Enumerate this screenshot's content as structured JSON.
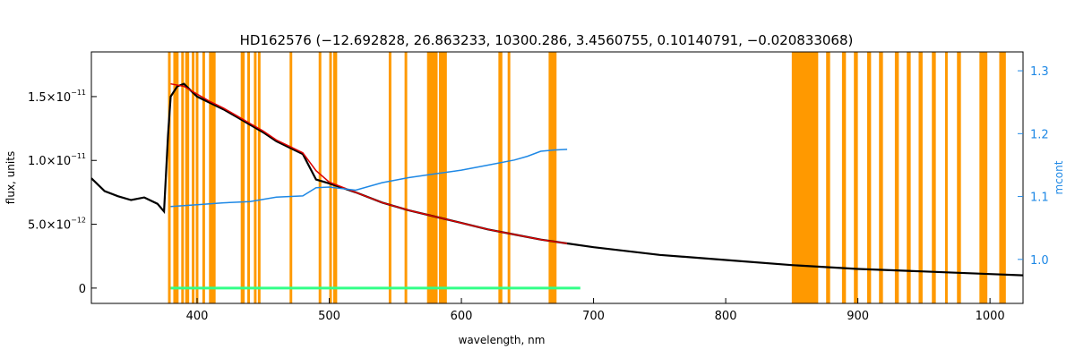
{
  "chart_data": {
    "type": "line",
    "title": "HD162576    (−12.692828, 26.863233, 10300.286, 3.4560755, 0.10140791, −0.020833068)",
    "xlabel": "wavelength, nm",
    "ylabel": "flux, units",
    "ylabel_right": "mcont",
    "xlim": [
      320,
      1025
    ],
    "ylim": [
      -1.2e-12,
      1.85e-11
    ],
    "ylim_right": [
      0.93,
      1.33
    ],
    "x_ticks": [
      400,
      500,
      600,
      700,
      800,
      900,
      1000
    ],
    "y_ticks": [
      {
        "value": 0,
        "mantissa": "0",
        "exponent": ""
      },
      {
        "value": 5e-12,
        "mantissa": "5.0×10",
        "exponent": "−12"
      },
      {
        "value": 1e-11,
        "mantissa": "1.0×10",
        "exponent": "−11"
      },
      {
        "value": 1.5e-11,
        "mantissa": "1.5×10",
        "exponent": "−11"
      }
    ],
    "y_right_ticks": [
      1.0,
      1.1,
      1.2,
      1.3
    ],
    "grid": false,
    "colors": {
      "observed": "#000000",
      "model": "#dd0000",
      "residual": "#33ff88",
      "continuum": "#1e88e5",
      "mask": "#ff9900"
    },
    "masked_regions": [
      [
        378,
        380
      ],
      [
        382,
        386
      ],
      [
        388,
        390
      ],
      [
        391,
        394
      ],
      [
        396,
        398
      ],
      [
        399,
        401
      ],
      [
        404,
        406
      ],
      [
        409,
        414
      ],
      [
        433,
        436
      ],
      [
        438,
        440
      ],
      [
        443,
        445
      ],
      [
        446,
        448
      ],
      [
        470,
        472
      ],
      [
        492,
        494
      ],
      [
        500,
        502
      ],
      [
        503,
        506
      ],
      [
        545,
        547
      ],
      [
        557,
        559
      ],
      [
        574,
        582
      ],
      [
        583,
        589
      ],
      [
        628,
        631
      ],
      [
        635,
        637
      ],
      [
        666,
        672
      ],
      [
        850,
        870
      ],
      [
        876,
        879
      ],
      [
        888,
        891
      ],
      [
        897,
        900
      ],
      [
        907,
        910
      ],
      [
        916,
        919
      ],
      [
        928,
        931
      ],
      [
        937,
        940
      ],
      [
        946,
        949
      ],
      [
        956,
        959
      ],
      [
        966,
        968
      ],
      [
        975,
        978
      ],
      [
        992,
        998
      ],
      [
        1007,
        1012
      ]
    ],
    "series": [
      {
        "name": "",
        "role": "observed",
        "x": [
          320,
          330,
          340,
          350,
          360,
          370,
          375,
          378,
          380,
          385,
          390,
          395,
          400,
          410,
          420,
          430,
          440,
          450,
          460,
          470,
          480,
          490,
          500,
          520,
          540,
          560,
          580,
          600,
          620,
          640,
          660,
          680,
          700,
          750,
          800,
          850,
          900,
          950,
          1000,
          1025
        ],
        "y": [
          8.6e-12,
          7.6e-12,
          7.2e-12,
          6.9e-12,
          7.1e-12,
          6.6e-12,
          6e-12,
          1.2e-11,
          1.5e-11,
          1.58e-11,
          1.6e-11,
          1.55e-11,
          1.5e-11,
          1.45e-11,
          1.4e-11,
          1.34e-11,
          1.28e-11,
          1.22e-11,
          1.15e-11,
          1.1e-11,
          1.05e-11,
          8.5e-12,
          8.2e-12,
          7.5e-12,
          6.7e-12,
          6.1e-12,
          5.6e-12,
          5.1e-12,
          4.6e-12,
          4.2e-12,
          3.8e-12,
          3.5e-12,
          3.2e-12,
          2.6e-12,
          2.2e-12,
          1.8e-12,
          1.5e-12,
          1.3e-12,
          1.1e-12,
          1e-12
        ]
      },
      {
        "name": "",
        "role": "model",
        "x": [
          380,
          390,
          400,
          410,
          420,
          430,
          440,
          450,
          460,
          470,
          480,
          490,
          500,
          520,
          540,
          560,
          580,
          600,
          620,
          640,
          660,
          680
        ],
        "y": [
          1.6e-11,
          1.58e-11,
          1.52e-11,
          1.46e-11,
          1.41e-11,
          1.35e-11,
          1.29e-11,
          1.23e-11,
          1.16e-11,
          1.11e-11,
          1.06e-11,
          9.2e-12,
          8.3e-12,
          7.5e-12,
          6.7e-12,
          6.1e-12,
          5.6e-12,
          5.1e-12,
          4.6e-12,
          4.2e-12,
          3.8e-12,
          3.5e-12
        ]
      },
      {
        "name": "",
        "role": "continuum",
        "axis": "right",
        "x": [
          380,
          400,
          420,
          440,
          460,
          480,
          490,
          500,
          520,
          540,
          560,
          580,
          600,
          620,
          640,
          650,
          660,
          670,
          680
        ],
        "y": [
          1.084,
          1.087,
          1.09,
          1.092,
          1.099,
          1.101,
          1.114,
          1.115,
          1.11,
          1.122,
          1.13,
          1.136,
          1.142,
          1.15,
          1.158,
          1.164,
          1.172,
          1.174,
          1.175
        ]
      },
      {
        "name": "",
        "role": "residual",
        "x": [
          380,
          690
        ],
        "y": [
          0,
          0
        ]
      }
    ]
  }
}
